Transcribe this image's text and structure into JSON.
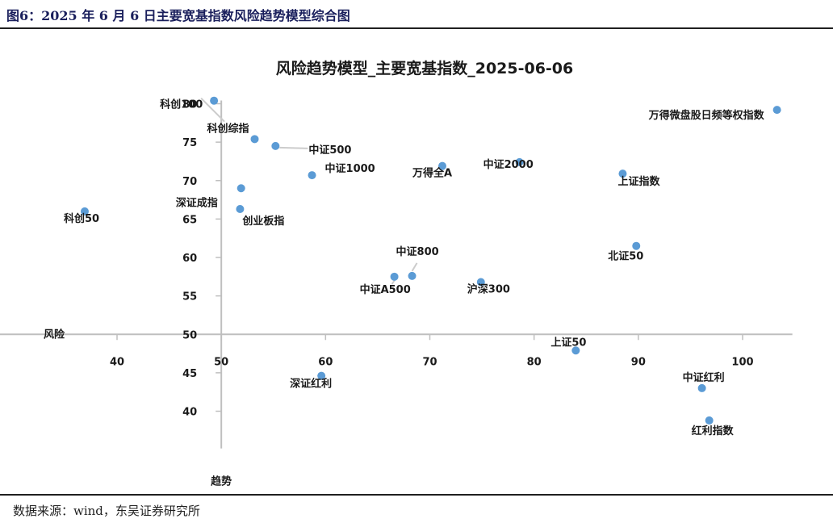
{
  "caption": "图6：2025 年 6 月 6 日主要宽基指数风险趋势模型综合图",
  "source": "数据来源：wind，东吴证券研究所",
  "colors": {
    "marker": "#5b9bd5",
    "axis": "#bfbfbf",
    "leader": "#cccccc",
    "text": "#1a1a1a",
    "caption": "#1a1f5c"
  },
  "chart_data": {
    "type": "scatter",
    "title": "风险趋势模型_主要宽基指数_2025-06-06",
    "xlabel": "风险",
    "ylabel": "趋势",
    "xlim": [
      30,
      104
    ],
    "ylim": [
      36,
      80
    ],
    "x_ticks": [
      40,
      50,
      60,
      70,
      80,
      90,
      100
    ],
    "y_ticks": [
      40,
      45,
      50,
      55,
      60,
      65,
      70,
      75,
      80
    ],
    "x_axis_crosses_y": 50,
    "y_axis_crosses_x": 50,
    "grid": false,
    "legend": "none",
    "points": [
      {
        "name": "科创100",
        "x": 49.3,
        "y": 80.4
      },
      {
        "name": "科创综指",
        "x": 53.2,
        "y": 75.4
      },
      {
        "name": "科创50",
        "x": 36.9,
        "y": 66.0
      },
      {
        "name": "中证500",
        "x": 55.2,
        "y": 74.5
      },
      {
        "name": "中证1000",
        "x": 58.7,
        "y": 70.7
      },
      {
        "name": "深证成指",
        "x": 51.9,
        "y": 69.0
      },
      {
        "name": "创业板指",
        "x": 51.8,
        "y": 66.3
      },
      {
        "name": "万得全A",
        "x": 71.2,
        "y": 71.9
      },
      {
        "name": "中证2000",
        "x": 78.6,
        "y": 72.4
      },
      {
        "name": "上证指数",
        "x": 88.5,
        "y": 70.9
      },
      {
        "name": "万得微盘股日频等权指数",
        "x": 103.3,
        "y": 79.2
      },
      {
        "name": "北证50",
        "x": 89.8,
        "y": 61.5
      },
      {
        "name": "中证800",
        "x": 68.3,
        "y": 57.6
      },
      {
        "name": "中证A500",
        "x": 66.6,
        "y": 57.5
      },
      {
        "name": "沪深300",
        "x": 74.9,
        "y": 56.8
      },
      {
        "name": "上证50",
        "x": 84.0,
        "y": 47.9
      },
      {
        "name": "深证红利",
        "x": 59.6,
        "y": 44.6
      },
      {
        "name": "中证红利",
        "x": 96.1,
        "y": 43.0
      },
      {
        "name": "红利指数",
        "x": 96.8,
        "y": 38.8
      }
    ]
  }
}
